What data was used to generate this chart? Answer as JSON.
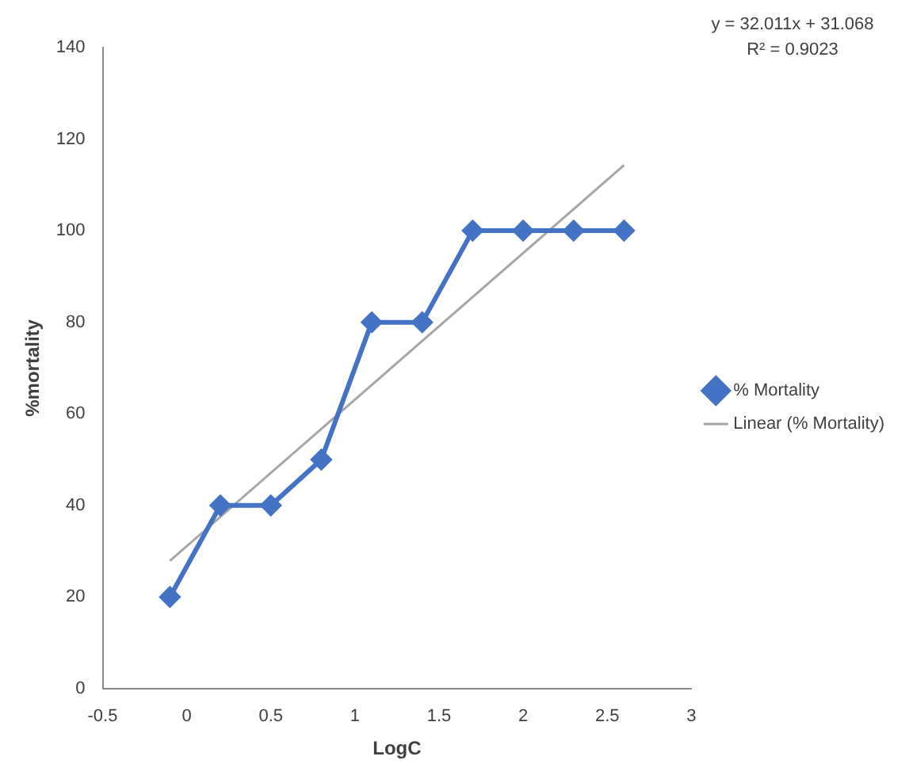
{
  "chart_data": {
    "type": "line",
    "xlabel": "LogC",
    "ylabel": "%mortality",
    "x": [
      -0.1,
      0.2,
      0.5,
      0.8,
      1.1,
      1.4,
      1.7,
      2.0,
      2.3,
      2.6
    ],
    "series": [
      {
        "name": "% Mortality",
        "color": "#4472c4",
        "values": [
          20,
          40,
          40,
          50,
          80,
          80,
          100,
          100,
          100,
          100
        ],
        "marker": "diamond"
      },
      {
        "name": "Linear (% Mortality)",
        "type": "line",
        "color": "#a6a6a6",
        "x": [
          -0.1,
          2.6
        ],
        "values": [
          27.9,
          114.3
        ],
        "marker": "none"
      }
    ],
    "xlim": [
      -0.5,
      3
    ],
    "xticks": [
      -0.5,
      0,
      0.5,
      1,
      1.5,
      2,
      2.5,
      3
    ],
    "ylim": [
      0,
      140
    ],
    "yticks": [
      0,
      20,
      40,
      60,
      80,
      100,
      120,
      140
    ],
    "grid": false,
    "legend": "right",
    "annotations": [
      "y = 32.011x + 31.068",
      "R² = 0.9023"
    ]
  }
}
